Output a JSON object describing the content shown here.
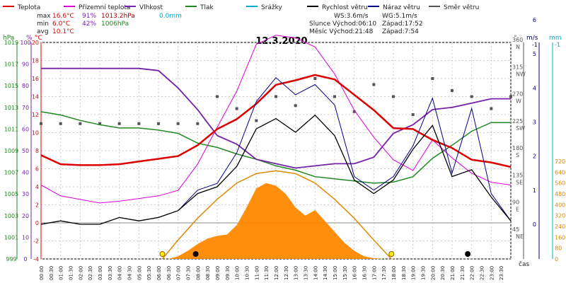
{
  "chart_data": {
    "type": "line",
    "title": "12.3.2020",
    "legend": [
      {
        "name": "Teplota",
        "color": "#dd0000"
      },
      {
        "name": "Přízemní teplota",
        "color": "#dd00dd"
      },
      {
        "name": "Vlhkost",
        "color": "#7722aa"
      },
      {
        "name": "Tlak",
        "color": "#228822"
      },
      {
        "name": "Srážky",
        "color": "#00aacc"
      },
      {
        "name": "Rychlost větru",
        "color": "#000000"
      },
      {
        "name": "Náraz větru",
        "color": "#000088"
      },
      {
        "name": "Směr větru",
        "color": "#555555"
      }
    ],
    "stats": {
      "max": {
        "label": "max",
        "temp": "16.6°C",
        "hum": "91%",
        "press": "1013.2hPa",
        "rain": "0.0mm"
      },
      "min": {
        "label": "min",
        "temp": "6.0°C",
        "hum": "42%",
        "press": "1006hPa"
      },
      "avg": {
        "label": "avg",
        "temp": "10.1°C"
      }
    },
    "info": {
      "ws": "WS:3.6m/s",
      "wg": "WG:5.1m/s",
      "sun": "Slunce Východ:06:10",
      "sun_set": "Západ:17:52",
      "moon": "Měsíc  Východ:21:48",
      "moon_set": "Západ:7:54"
    },
    "axis_units": {
      "hpa": "hPa",
      "pct": "%",
      "deg": "°C",
      "dir": "°",
      "ms": "m/s",
      "mm": "mm"
    },
    "axis_hpa": [
      "999",
      "1001",
      "1003",
      "1005",
      "1007",
      "1009",
      "1011",
      "1013",
      "1015",
      "1017",
      "1019"
    ],
    "axis_pct": [
      "0",
      "10",
      "20",
      "30",
      "40",
      "50",
      "60",
      "70",
      "80",
      "90",
      "100"
    ],
    "axis_temp": [
      "-4",
      "-2",
      "0",
      "2",
      "4",
      "6",
      "8",
      "10",
      "12",
      "14",
      "16",
      "18",
      "20"
    ],
    "axis_dir": [
      {
        "deg": 360,
        "label": "360",
        "card": "N"
      },
      {
        "deg": 315,
        "label": "315",
        "card": "NW"
      },
      {
        "deg": 270,
        "label": "270",
        "card": "W"
      },
      {
        "deg": 225,
        "label": "225",
        "card": "SW"
      },
      {
        "deg": 180,
        "label": "180",
        "card": "S"
      },
      {
        "deg": 135,
        "label": "135",
        "card": "SE"
      },
      {
        "deg": 90,
        "label": "90",
        "card": "E"
      },
      {
        "deg": 45,
        "label": "45",
        "card": "NE"
      }
    ],
    "axis_ms": [
      "0",
      "1",
      "2",
      "3",
      "4",
      "5",
      "6"
    ],
    "axis_mm": [
      "0",
      "80",
      "160",
      "240",
      "320",
      "400",
      "480",
      "560",
      "640",
      "720"
    ],
    "axis_top_ms": "-1",
    "axis_top_mm": "-1",
    "xlabel": "čas",
    "x_ticks": [
      "00:00",
      "00:30",
      "01:00",
      "01:30",
      "02:00",
      "02:30",
      "03:00",
      "03:30",
      "04:00",
      "04:30",
      "05:00",
      "05:30",
      "06:00",
      "06:30",
      "07:00",
      "07:30",
      "08:00",
      "08:30",
      "09:00",
      "09:30",
      "10:00",
      "10:30",
      "11:00",
      "11:30",
      "12:00",
      "12:30",
      "13:00",
      "13:30",
      "14:00",
      "14:30",
      "15:00",
      "15:30",
      "16:00",
      "16:30",
      "17:00",
      "17:30",
      "18:00",
      "18:30",
      "19:00",
      "19:30",
      "20:00",
      "20:30",
      "21:00",
      "21:30",
      "22:00",
      "22:30",
      "23:00",
      "23:30"
    ],
    "series": [
      {
        "name": "Teplota",
        "unit": "°C",
        "x": [
          0,
          1,
          2,
          3,
          4,
          5,
          6,
          7,
          8,
          9,
          10,
          11,
          12,
          13,
          14,
          15,
          16,
          17,
          18,
          19,
          20,
          21,
          22,
          23,
          24
        ],
        "values": [
          7.5,
          6.5,
          6.4,
          6.4,
          6.5,
          6.8,
          7.1,
          7.4,
          8.6,
          10.4,
          11.5,
          13.2,
          15.3,
          15.8,
          16.4,
          15.9,
          14.2,
          12.5,
          10.5,
          10.4,
          9.2,
          8.3,
          7.0,
          6.7,
          6.2
        ]
      },
      {
        "name": "Přízemní teplota",
        "unit": "°C",
        "x": [
          0,
          1,
          2,
          3,
          4,
          5,
          6,
          7,
          8,
          9,
          10,
          11,
          12,
          13,
          14,
          15,
          16,
          17,
          18,
          19,
          20,
          21,
          22,
          23,
          24
        ],
        "values": [
          4.2,
          3.0,
          2.6,
          2.2,
          2.4,
          2.7,
          3.0,
          3.6,
          6.5,
          10.6,
          14.6,
          19.8,
          20.8,
          20.5,
          19.5,
          16.5,
          12.5,
          9.5,
          7.0,
          5.8,
          9.2,
          7.2,
          5.5,
          4.5,
          4.2
        ]
      },
      {
        "name": "Vlhkost",
        "unit": "%",
        "x": [
          0,
          1,
          2,
          3,
          4,
          5,
          6,
          7,
          8,
          9,
          10,
          11,
          12,
          13,
          14,
          15,
          16,
          17,
          18,
          19,
          20,
          21,
          22,
          23,
          24
        ],
        "values": [
          88,
          88,
          88,
          88,
          88,
          88,
          87,
          79,
          69,
          57,
          53,
          46,
          44,
          42,
          43,
          44,
          44,
          47,
          58,
          62,
          69,
          70,
          72,
          74,
          74
        ]
      },
      {
        "name": "Tlak",
        "unit": "hPa",
        "x": [
          0,
          1,
          2,
          3,
          4,
          5,
          6,
          7,
          8,
          9,
          10,
          11,
          12,
          13,
          14,
          15,
          16,
          17,
          18,
          19,
          20,
          21,
          22,
          23,
          24
        ],
        "values": [
          1012.6,
          1012.3,
          1011.8,
          1011.4,
          1011.1,
          1011.1,
          1010.9,
          1010.6,
          1009.7,
          1009.3,
          1008.7,
          1008.2,
          1007.6,
          1007.2,
          1006.6,
          1006.4,
          1006.2,
          1006.0,
          1006.1,
          1006.6,
          1008.3,
          1009.5,
          1010.8,
          1011.6,
          1011.6
        ]
      },
      {
        "name": "Rychlost větru",
        "unit": "m/s",
        "x": [
          0,
          1,
          2,
          3,
          4,
          5,
          6,
          7,
          8,
          9,
          10,
          11,
          12,
          13,
          14,
          15,
          16,
          17,
          18,
          19,
          20,
          21,
          22,
          23,
          24
        ],
        "values": [
          0.0,
          0.1,
          0.0,
          0.0,
          0.2,
          0.1,
          0.2,
          0.4,
          0.9,
          1.1,
          1.7,
          2.8,
          3.1,
          2.7,
          3.2,
          2.6,
          1.3,
          0.9,
          1.3,
          2.2,
          2.9,
          1.4,
          1.6,
          0.8,
          0.1
        ]
      },
      {
        "name": "Náraz větru",
        "unit": "m/s",
        "x": [
          0,
          1,
          2,
          3,
          4,
          5,
          6,
          7,
          8,
          9,
          10,
          11,
          12,
          13,
          14,
          15,
          16,
          17,
          18,
          19,
          20,
          21,
          22,
          23,
          24
        ],
        "values": [
          0.0,
          0.1,
          0.0,
          0.0,
          0.2,
          0.1,
          0.2,
          0.4,
          1.0,
          1.2,
          2.1,
          3.6,
          4.3,
          3.8,
          4.1,
          3.5,
          1.4,
          1.0,
          1.4,
          2.3,
          3.7,
          1.5,
          3.4,
          0.9,
          0.1
        ]
      },
      {
        "name": "Směr větru",
        "unit": "°",
        "x": [
          0,
          1,
          2,
          3,
          4,
          5,
          6,
          7,
          8,
          9,
          10,
          11,
          12,
          13,
          14,
          15,
          16,
          17,
          18,
          19,
          20,
          21,
          22,
          23,
          24
        ],
        "values": [
          225,
          225,
          225,
          225,
          225,
          225,
          225,
          225,
          225,
          270,
          250,
          230,
          270,
          255,
          300,
          270,
          245,
          290,
          270,
          240,
          300,
          280,
          270,
          250,
          270
        ]
      },
      {
        "name": "Sluneční záření",
        "unit": "W/m²",
        "x": [
          6.5,
          7,
          7.5,
          8,
          8.5,
          9,
          9.5,
          10,
          10.5,
          11,
          11.5,
          12,
          12.5,
          13,
          13.5,
          14,
          14.5,
          15,
          15.5,
          16,
          16.5,
          17,
          17.5
        ],
        "values": [
          0,
          20,
          60,
          110,
          150,
          170,
          180,
          250,
          380,
          520,
          560,
          540,
          480,
          380,
          320,
          360,
          280,
          200,
          120,
          60,
          20,
          5,
          0
        ]
      },
      {
        "name": "Teoretické záření",
        "unit": "W/m²",
        "x": [
          6.2,
          7,
          8,
          9,
          10,
          11,
          12,
          13,
          14,
          15,
          16,
          17,
          17.9
        ],
        "values": [
          0,
          140,
          300,
          440,
          560,
          630,
          650,
          630,
          560,
          440,
          300,
          140,
          0
        ]
      }
    ],
    "markers": [
      {
        "kind": "sunrise",
        "time": 6.2
      },
      {
        "kind": "sunset",
        "time": 17.9
      },
      {
        "kind": "moonset",
        "time": 7.9
      },
      {
        "kind": "moonrise",
        "time": 21.8
      }
    ],
    "colors": {
      "radiation_fill": "#ff8800",
      "theory": "#dd8800",
      "grid": "#cccccc",
      "dir": "#555555",
      "zero": "#888888"
    }
  }
}
